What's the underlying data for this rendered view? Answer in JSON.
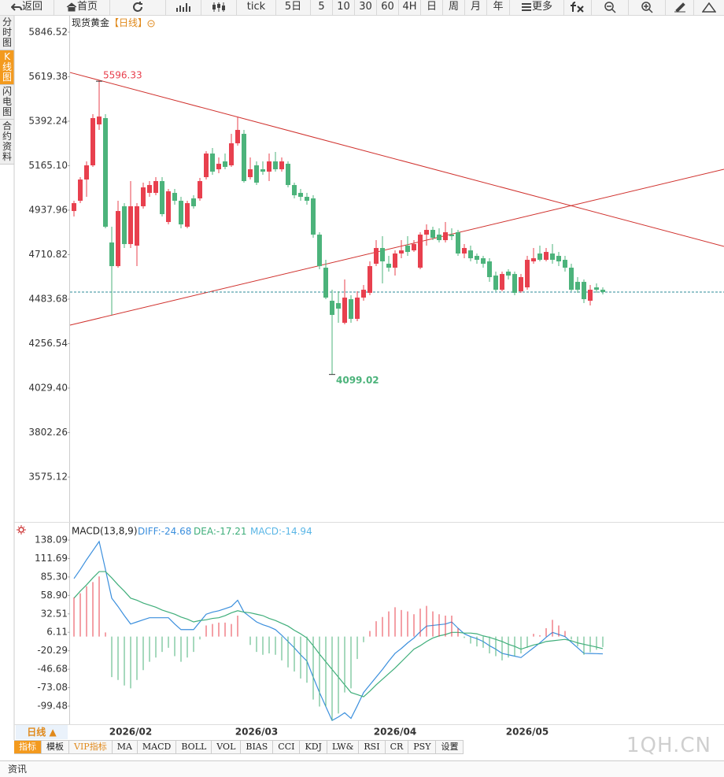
{
  "toolbar": [
    "返回",
    "首页",
    "tick",
    "5日",
    "5",
    "10",
    "30",
    "60",
    "4H",
    "日",
    "周",
    "月",
    "年",
    "更多"
  ],
  "sidebar": [
    "分时图",
    "K线图",
    "闪电图",
    "合约资料"
  ],
  "period_selector": "日线 ▲",
  "indicator_tabs": [
    "指标",
    "模板",
    "VIP指标",
    "MA",
    "MACD",
    "BOLL",
    "VOL",
    "BIAS",
    "CCI",
    "KDJ",
    "LW&",
    "RSI",
    "CR",
    "PSY",
    "设置"
  ],
  "bottom_bar": "资讯",
  "watermark": "1QH.CN",
  "chart_data": [
    {
      "type": "candlestick",
      "title": "现货黄金",
      "subtitle": "【日线】",
      "up_color": "#e8404e",
      "down_color": "#4cb37b",
      "ylim": [
        3350,
        5922.6
      ],
      "yticks": [
        5846.52,
        5619.38,
        5392.24,
        {
          "value": 5165.1,
          "label": "5165.10"
        },
        4937.96,
        4710.82,
        4483.68,
        4256.54,
        {
          "value": 4029.4,
          "label": "4029.40"
        },
        3802.26,
        3575.12
      ],
      "open": [
        4933.6,
        4985.9,
        5094.4,
        5166.8,
        5375.8,
        5408,
        4772.8,
        4652.2,
        4957.8,
        4764.8,
        4756.8,
        4957.8,
        5026.1,
        5026.1,
        5086.4,
        4877.4,
        5026.1,
        4985.9,
        4853.2,
        4998,
        4998,
        5106.5,
        5227.1,
        5146.7,
        5186.9,
        5166.8,
        5279.4,
        5327.6,
        5106.5,
        5166.8,
        5146.7,
        5134.6,
        5186.9,
        5146.7,
        5174.8,
        5066.3,
        5026.1,
        5006,
        4998,
        4813,
        4644.2,
        4475.4,
        4463.3,
        4362.8,
        4483.4,
        4382.9,
        4491.4,
        4515.6,
        4664.3,
        4744.7,
        4664.3,
        4644.2,
        4716.6,
        4756.8,
        4732.6,
        4644.2,
        4813,
        4837.2,
        4813,
        4784.9,
        4813,
        4825.1,
        4716.6,
        4732.6,
        4704.5,
        4692.4,
        4676.4,
        4604,
        4531.6,
        4624.1,
        4612,
        4523.6,
        4543.7,
        4676.4,
        4716.6,
        4684.4,
        4716.6,
        4704.5,
        4684.4,
        4644.2,
        4571.8,
        4571.8,
        4475.4,
        4543.7,
        4531.6
      ],
      "high": [
        4985.9,
        5106.5,
        5186.9,
        5428.1,
        5596.33,
        5428.1,
        4853.2,
        4985.9,
        4973.8,
        5086.4,
        4973.8,
        5078.4,
        5086.4,
        5106.5,
        5106.5,
        5046.2,
        5046.2,
        5006,
        4985.9,
        5014,
        5102.5,
        5239.2,
        5255.2,
        5207,
        5227.1,
        5327.6,
        5416,
        5347.7,
        5207,
        5186.9,
        5186.9,
        5227.1,
        5235.1,
        5207,
        5186.9,
        5078.4,
        5046.2,
        5026.1,
        5014,
        4825.1,
        4684.4,
        4531.6,
        4523.6,
        4583.9,
        4503.5,
        4523.6,
        4555.8,
        4676.4,
        4784.9,
        4805,
        4704.5,
        4732.6,
        4784.9,
        4805,
        4784.9,
        4825.1,
        4865.3,
        4853.2,
        4845.2,
        4877.4,
        4845.2,
        4837.2,
        4764.8,
        4756.8,
        4716.6,
        4704.5,
        4692.4,
        4624.1,
        4624.1,
        4636.2,
        4624.1,
        4612,
        4704.5,
        4744.7,
        4756.8,
        4744.7,
        4764.8,
        4724.6,
        4704.5,
        4664.3,
        4596,
        4583.9,
        4555.8,
        4563.8,
        4543.7
      ],
      "low": [
        4905.5,
        4973.8,
        5006,
        5158.8,
        5347.7,
        4845.2,
        4403,
        4644.2,
        4744.7,
        4744.7,
        4652.2,
        4945.7,
        5006,
        5014,
        4905.5,
        4865.3,
        4965.8,
        4845.2,
        4845.2,
        4945.7,
        4985.9,
        5094.4,
        5118.6,
        5126.6,
        5146.7,
        5158.8,
        5267.3,
        5078.4,
        5094.4,
        5066.3,
        5118.6,
        5086.4,
        5134.6,
        5134.6,
        5054.2,
        4998,
        4985.9,
        4965.8,
        4797,
        4636.2,
        4483.4,
        4099.02,
        4362.8,
        4354.8,
        4362.8,
        4370.8,
        4475.4,
        4503.5,
        4652.2,
        4563.8,
        4624.1,
        4604,
        4692.4,
        4704.5,
        4724.6,
        4636.2,
        4756.8,
        4784.9,
        4772.8,
        4772.8,
        4784.9,
        4704.5,
        4692.4,
        4676.4,
        4664.3,
        4644.2,
        4571.8,
        4523.6,
        4523.6,
        4583.9,
        4503.5,
        4515.6,
        4531.6,
        4664.3,
        4676.4,
        4676.4,
        4664.3,
        4652.2,
        4624.1,
        4523.6,
        4515.6,
        4463.3,
        4451.2,
        4515.6,
        4507.5
      ],
      "close": [
        4973.8,
        5094.4,
        5166.8,
        5408,
        5416,
        4853.2,
        4652.2,
        4933.6,
        4764.8,
        4957.8,
        4957.8,
        5054.2,
        5066.3,
        5086.4,
        4917.6,
        5034.1,
        4985.9,
        4865.3,
        4973.8,
        4957.8,
        5086.4,
        5227.1,
        5134.6,
        5174.8,
        5158.8,
        5279.4,
        5347.7,
        5086.4,
        5146.7,
        5078.4,
        5134.6,
        5186.9,
        5146.7,
        5186.9,
        5066.3,
        5014,
        5006,
        4985.9,
        4813,
        4652.2,
        4491.4,
        4403,
        4435.2,
        4491.4,
        4382.9,
        4491.4,
        4531.6,
        4652.2,
        4744.7,
        4676.4,
        4644.2,
        4716.6,
        4732.6,
        4724.6,
        4764.8,
        4813,
        4837.2,
        4797,
        4784.9,
        4825.1,
        4805,
        4716.6,
        4744.7,
        4692.4,
        4684.4,
        4664.3,
        4596,
        4531.6,
        4612,
        4604,
        4515.6,
        4596,
        4684.4,
        4692.4,
        4684.4,
        4724.6,
        4684.4,
        4676.4,
        4644.2,
        4531.6,
        4531.6,
        4483.4,
        4531.6,
        4531.6,
        4519.6
      ],
      "trend_lines": [
        {
          "start": 5641,
          "end": 4753,
          "color": "#d0312d"
        },
        {
          "start": 4351,
          "end": 5147,
          "color": "#d0312d"
        }
      ],
      "last_price_color": "#2e8b9a"
    },
    {
      "type": "macd",
      "title": "MACD(13,8,9)",
      "up_color": "#e8404e",
      "down_color": "#4cb37b",
      "ylim": [
        -125.4,
        158.4
      ],
      "yticks": [
        138.09,
        111.69,
        {
          "value": 85.3,
          "label": "85.30"
        },
        {
          "value": 58.9,
          "label": "58.90"
        },
        32.51,
        6.11,
        -20.29,
        -46.68,
        -73.08,
        -99.48
      ],
      "categories": [
        null,
        null,
        null,
        null,
        null,
        null,
        null,
        null,
        null,
        "2026/02",
        null,
        null,
        null,
        null,
        null,
        null,
        null,
        null,
        null,
        null,
        null,
        null,
        null,
        null,
        null,
        null,
        null,
        null,
        null,
        "2026/03",
        null,
        null,
        null,
        null,
        null,
        null,
        null,
        null,
        null,
        null,
        null,
        null,
        null,
        null,
        null,
        null,
        null,
        null,
        null,
        null,
        null,
        "2026/04",
        null,
        null,
        null,
        null,
        null,
        null,
        null,
        null,
        null,
        null,
        null,
        null,
        null,
        null,
        null,
        null,
        null,
        null,
        null,
        null,
        "2026/05",
        null,
        null,
        null,
        null,
        null,
        null,
        null,
        null,
        null,
        null,
        null,
        null
      ],
      "series": [
        {
          "name": "DIFF:",
          "color": "#3b8fdd",
          "style": "line",
          "values": [
            83,
            96,
            110,
            123,
            136,
            96,
            55,
            43,
            30,
            18,
            21,
            24,
            27,
            27,
            27,
            27,
            18,
            10,
            10,
            10,
            21,
            32,
            35,
            37,
            40,
            43,
            52,
            35,
            28,
            21,
            17,
            14,
            10,
            2,
            -7,
            -16,
            -26,
            -35,
            -58,
            -80,
            -100,
            -120,
            -115,
            -109,
            -117,
            -99,
            -80,
            -69,
            -58,
            -47,
            -35,
            -24,
            -17,
            -9,
            -2,
            7,
            15,
            16,
            17,
            18,
            21,
            12,
            4,
            0,
            -3,
            -7,
            -13,
            -18,
            -24,
            -26,
            -28,
            -30,
            -23,
            -16,
            -9,
            -1,
            6,
            3,
            0,
            -8,
            -16,
            -24,
            -24.2,
            -24.4,
            -24.68
          ]
        },
        {
          "name": "DEA:",
          "color": "#3fae7a",
          "style": "line",
          "values": [
            55,
            65,
            74,
            84,
            93,
            93,
            84,
            74,
            65,
            55,
            52,
            48,
            45,
            42,
            38,
            35,
            32,
            28,
            25,
            21,
            23,
            24,
            26,
            27,
            30,
            34,
            37,
            35,
            34,
            32,
            30,
            26,
            23,
            19,
            15,
            9,
            4,
            -2,
            -13,
            -25,
            -36,
            -47,
            -58,
            -69,
            -80,
            -83,
            -86,
            -78,
            -69,
            -61,
            -53,
            -45,
            -36,
            -27,
            -18,
            -13,
            -7,
            -2,
            1,
            3,
            6,
            6,
            5,
            5,
            4,
            1,
            -1,
            -4,
            -7,
            -11,
            -14,
            -18,
            -15,
            -12,
            -10,
            -7,
            -6,
            -5,
            -4,
            -6,
            -9,
            -11,
            -13,
            -15,
            -17.21
          ]
        },
        {
          "name": "MACD:",
          "color": "#5ab6e6",
          "style": "bar",
          "values": [
            56,
            62,
            72,
            78,
            86,
            6,
            -58,
            -62,
            -70,
            -74,
            -62,
            -48,
            -36,
            -30,
            -22,
            -16,
            -28,
            -36,
            -30,
            -22,
            -4,
            16,
            18,
            20,
            20,
            18,
            30,
            0,
            -12,
            -22,
            -26,
            -24,
            -26,
            -34,
            -44,
            -50,
            -60,
            -66,
            -90,
            -100,
            -100,
            -120,
            -110,
            -80,
            -74,
            -32,
            -8,
            8,
            22,
            28,
            36,
            42,
            38,
            36,
            32,
            40,
            44,
            36,
            32,
            30,
            30,
            12,
            -2,
            -10,
            -14,
            -16,
            -24,
            -28,
            -34,
            -30,
            -28,
            -24,
            -16,
            4,
            2,
            12,
            24,
            16,
            8,
            -4,
            -14,
            -26,
            -22.4,
            -18.8,
            -14.94
          ]
        }
      ]
    }
  ]
}
